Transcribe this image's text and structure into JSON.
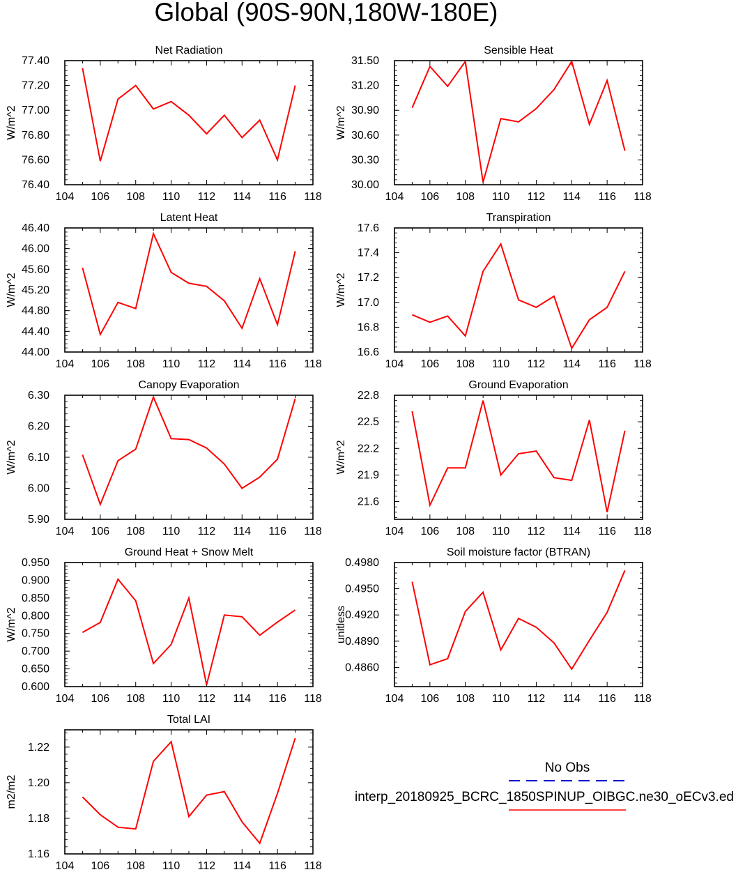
{
  "page_title": "Global (90S-90N,180W-180E)",
  "colors": {
    "series": "#ff0000",
    "obs": "#0000cc",
    "axis": "#000000"
  },
  "legend": {
    "obs_label": "No Obs",
    "model_label": "interp_20180925_BCRC_1850SPINUP_OIBGC.ne30_oECv3.ed"
  },
  "chart_data": [
    {
      "type": "line",
      "title": "Net Radiation",
      "ylabel": "W/m^2",
      "x": [
        105,
        106,
        107,
        108,
        109,
        110,
        111,
        112,
        113,
        114,
        115,
        116,
        117
      ],
      "series": [
        {
          "values": [
            77.34,
            76.59,
            77.09,
            77.2,
            77.01,
            77.07,
            76.96,
            76.81,
            76.96,
            76.78,
            76.92,
            76.6,
            77.2
          ]
        }
      ],
      "xlim": [
        104,
        118
      ],
      "ylim": [
        76.4,
        77.4
      ],
      "xticks": [
        "104",
        "106",
        "108",
        "110",
        "112",
        "114",
        "116",
        "118"
      ],
      "yticks": [
        "76.40",
        "76.60",
        "76.80",
        "77.00",
        "77.20",
        "77.40"
      ]
    },
    {
      "type": "line",
      "title": "Sensible Heat",
      "ylabel": "W/m^2",
      "x": [
        105,
        106,
        107,
        108,
        109,
        110,
        111,
        112,
        113,
        114,
        115,
        116,
        117
      ],
      "series": [
        {
          "values": [
            30.93,
            31.43,
            31.19,
            31.49,
            30.03,
            30.8,
            30.76,
            30.92,
            31.15,
            31.49,
            30.73,
            31.26,
            30.41
          ]
        }
      ],
      "xlim": [
        104,
        118
      ],
      "ylim": [
        30.0,
        31.5
      ],
      "xticks": [
        "104",
        "106",
        "108",
        "110",
        "112",
        "114",
        "116",
        "118"
      ],
      "yticks": [
        "30.00",
        "30.30",
        "30.60",
        "30.90",
        "31.20",
        "31.50"
      ]
    },
    {
      "type": "line",
      "title": "Latent Heat",
      "ylabel": "W/m^2",
      "x": [
        105,
        106,
        107,
        108,
        109,
        110,
        111,
        112,
        113,
        114,
        115,
        116,
        117
      ],
      "series": [
        {
          "values": [
            45.63,
            44.34,
            44.96,
            44.84,
            46.29,
            45.54,
            45.33,
            45.27,
            44.99,
            44.46,
            45.42,
            44.53,
            45.95
          ]
        }
      ],
      "xlim": [
        104,
        118
      ],
      "ylim": [
        44.0,
        46.4
      ],
      "xticks": [
        "104",
        "106",
        "108",
        "110",
        "112",
        "114",
        "116",
        "118"
      ],
      "yticks": [
        "44.00",
        "44.40",
        "44.80",
        "45.20",
        "45.60",
        "46.00",
        "46.40"
      ]
    },
    {
      "type": "line",
      "title": "Transpiration",
      "ylabel": "W/m^2",
      "x": [
        105,
        106,
        107,
        108,
        109,
        110,
        111,
        112,
        113,
        114,
        115,
        116,
        117
      ],
      "series": [
        {
          "values": [
            16.9,
            16.84,
            16.89,
            16.73,
            17.25,
            17.47,
            17.02,
            16.96,
            17.05,
            16.63,
            16.86,
            16.96,
            17.25
          ]
        }
      ],
      "xlim": [
        104,
        118
      ],
      "ylim": [
        16.6,
        17.6
      ],
      "xticks": [
        "104",
        "106",
        "108",
        "110",
        "112",
        "114",
        "116",
        "118"
      ],
      "yticks": [
        "16.6",
        "16.8",
        "17.0",
        "17.2",
        "17.4",
        "17.6"
      ]
    },
    {
      "type": "line",
      "title": "Canopy Evaporation",
      "ylabel": "W/m^2",
      "x": [
        105,
        106,
        107,
        108,
        109,
        110,
        111,
        112,
        113,
        114,
        115,
        116,
        117
      ],
      "series": [
        {
          "values": [
            6.108,
            5.948,
            6.089,
            6.126,
            6.294,
            6.16,
            6.157,
            6.13,
            6.078,
            6.0,
            6.036,
            6.094,
            6.289
          ]
        }
      ],
      "xlim": [
        104,
        118
      ],
      "ylim": [
        5.9,
        6.3
      ],
      "xticks": [
        "104",
        "106",
        "108",
        "110",
        "112",
        "114",
        "116",
        "118"
      ],
      "yticks": [
        "5.90",
        "6.00",
        "6.10",
        "6.20",
        "6.30"
      ]
    },
    {
      "type": "line",
      "title": "Ground Evaporation",
      "ylabel": "W/m^2",
      "x": [
        105,
        106,
        107,
        108,
        109,
        110,
        111,
        112,
        113,
        114,
        115,
        116,
        117
      ],
      "series": [
        {
          "values": [
            22.62,
            21.56,
            21.98,
            21.98,
            22.74,
            21.9,
            22.14,
            22.17,
            21.87,
            21.84,
            22.52,
            21.48,
            22.4
          ]
        }
      ],
      "xlim": [
        104,
        118
      ],
      "ylim": [
        21.4,
        22.8
      ],
      "xticks": [
        "104",
        "106",
        "108",
        "110",
        "112",
        "114",
        "116",
        "118"
      ],
      "yticks": [
        "21.6",
        "21.9",
        "22.2",
        "22.5",
        "22.8"
      ]
    },
    {
      "type": "line",
      "title": "Ground Heat + Snow Melt",
      "ylabel": "W/m^2",
      "x": [
        105,
        106,
        107,
        108,
        109,
        110,
        111,
        112,
        113,
        114,
        115,
        116,
        117
      ],
      "series": [
        {
          "values": [
            0.753,
            0.781,
            0.903,
            0.842,
            0.665,
            0.719,
            0.85,
            0.605,
            0.802,
            0.797,
            0.745,
            0.782,
            0.816
          ]
        }
      ],
      "xlim": [
        104,
        118
      ],
      "ylim": [
        0.6,
        0.95
      ],
      "xticks": [
        "104",
        "106",
        "108",
        "110",
        "112",
        "114",
        "116",
        "118"
      ],
      "yticks": [
        "0.600",
        "0.650",
        "0.700",
        "0.750",
        "0.800",
        "0.850",
        "0.900",
        "0.950"
      ]
    },
    {
      "type": "line",
      "title": "Soil moisture factor (BTRAN)",
      "ylabel": "unitless",
      "x": [
        105,
        106,
        107,
        108,
        109,
        110,
        111,
        112,
        113,
        114,
        115,
        116,
        117
      ],
      "series": [
        {
          "values": [
            0.4958,
            0.4863,
            0.487,
            0.4924,
            0.4946,
            0.488,
            0.4916,
            0.4906,
            0.4888,
            0.4858,
            0.4891,
            0.4923,
            0.4971
          ]
        }
      ],
      "xlim": [
        104,
        118
      ],
      "ylim": [
        0.4838,
        0.498
      ],
      "xticks": [
        "104",
        "106",
        "108",
        "110",
        "112",
        "114",
        "116",
        "118"
      ],
      "yticks": [
        "0.4860",
        "0.4890",
        "0.4920",
        "0.4950",
        "0.4980"
      ]
    },
    {
      "type": "line",
      "title": "Total LAI",
      "ylabel": "m2/m2",
      "x": [
        105,
        106,
        107,
        108,
        109,
        110,
        111,
        112,
        113,
        114,
        115,
        116,
        117
      ],
      "series": [
        {
          "values": [
            1.192,
            1.182,
            1.175,
            1.174,
            1.212,
            1.223,
            1.181,
            1.193,
            1.195,
            1.178,
            1.166,
            1.194,
            1.225
          ]
        }
      ],
      "xlim": [
        104,
        118
      ],
      "ylim": [
        1.16,
        1.2297
      ],
      "xticks": [
        "104",
        "106",
        "108",
        "110",
        "112",
        "114",
        "116",
        "118"
      ],
      "yticks": [
        "1.16",
        "1.18",
        "1.20",
        "1.22"
      ]
    }
  ]
}
